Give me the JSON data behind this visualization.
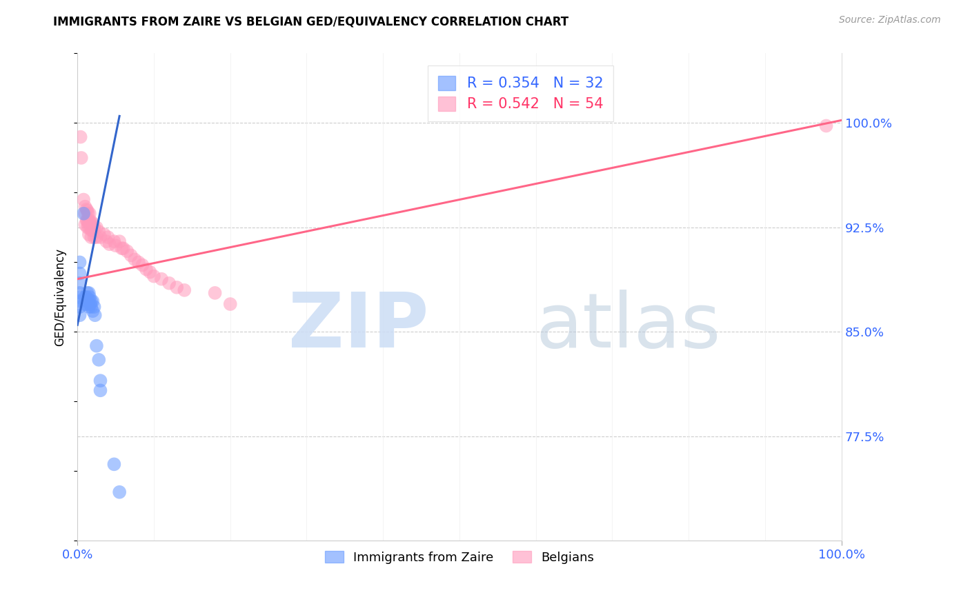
{
  "title": "IMMIGRANTS FROM ZAIRE VS BELGIAN GED/EQUIVALENCY CORRELATION CHART",
  "source": "Source: ZipAtlas.com",
  "ylabel": "GED/Equivalency",
  "ytick_labels": [
    "100.0%",
    "92.5%",
    "85.0%",
    "77.5%"
  ],
  "ytick_values": [
    1.0,
    0.925,
    0.85,
    0.775
  ],
  "xmin": 0.0,
  "xmax": 1.0,
  "ymin": 0.7,
  "ymax": 1.05,
  "blue_color": "#6699FF",
  "pink_color": "#FF99BB",
  "blue_line_color": "#3366CC",
  "pink_line_color": "#FF6688",
  "zaire_points_x": [
    0.003,
    0.003,
    0.003,
    0.003,
    0.003,
    0.003,
    0.003,
    0.003,
    0.008,
    0.01,
    0.01,
    0.012,
    0.012,
    0.013,
    0.013,
    0.015,
    0.015,
    0.015,
    0.016,
    0.017,
    0.018,
    0.018,
    0.02,
    0.02,
    0.022,
    0.023,
    0.025,
    0.028,
    0.03,
    0.03,
    0.048,
    0.055
  ],
  "zaire_points_y": [
    0.9,
    0.892,
    0.885,
    0.878,
    0.875,
    0.872,
    0.868,
    0.862,
    0.935,
    0.875,
    0.87,
    0.875,
    0.87,
    0.878,
    0.872,
    0.878,
    0.873,
    0.868,
    0.875,
    0.87,
    0.872,
    0.868,
    0.872,
    0.865,
    0.868,
    0.862,
    0.84,
    0.83,
    0.815,
    0.808,
    0.755,
    0.735
  ],
  "belgian_points_x": [
    0.004,
    0.005,
    0.008,
    0.01,
    0.01,
    0.01,
    0.012,
    0.012,
    0.013,
    0.013,
    0.013,
    0.014,
    0.014,
    0.015,
    0.015,
    0.015,
    0.016,
    0.016,
    0.017,
    0.018,
    0.018,
    0.018,
    0.02,
    0.02,
    0.022,
    0.022,
    0.025,
    0.025,
    0.028,
    0.03,
    0.035,
    0.038,
    0.04,
    0.042,
    0.048,
    0.05,
    0.055,
    0.058,
    0.06,
    0.065,
    0.07,
    0.075,
    0.08,
    0.085,
    0.09,
    0.095,
    0.1,
    0.11,
    0.12,
    0.13,
    0.14,
    0.18,
    0.2,
    0.98
  ],
  "belgian_points_y": [
    0.99,
    0.975,
    0.945,
    0.94,
    0.935,
    0.927,
    0.938,
    0.93,
    0.937,
    0.93,
    0.925,
    0.935,
    0.928,
    0.93,
    0.925,
    0.92,
    0.935,
    0.928,
    0.93,
    0.928,
    0.923,
    0.918,
    0.928,
    0.923,
    0.925,
    0.918,
    0.925,
    0.918,
    0.922,
    0.918,
    0.92,
    0.915,
    0.918,
    0.913,
    0.915,
    0.912,
    0.915,
    0.91,
    0.91,
    0.908,
    0.905,
    0.902,
    0.9,
    0.898,
    0.895,
    0.893,
    0.89,
    0.888,
    0.885,
    0.882,
    0.88,
    0.878,
    0.87,
    0.998
  ],
  "blue_line_x": [
    0.0,
    0.055
  ],
  "blue_line_y": [
    0.855,
    1.005
  ],
  "pink_line_x": [
    0.0,
    1.0
  ],
  "pink_line_y": [
    0.888,
    1.002
  ],
  "legend_entries": [
    {
      "label": "R = 0.354   N = 32",
      "color": "#3366FF"
    },
    {
      "label": "R = 0.542   N = 54",
      "color": "#FF3366"
    }
  ],
  "bottom_legend": [
    {
      "label": "Immigrants from Zaire",
      "color": "#6699FF"
    },
    {
      "label": "Belgians",
      "color": "#FF99BB"
    }
  ],
  "watermark_zip": "ZIP",
  "watermark_atlas": "atlas",
  "watermark_color_zip": "#DDEEFF",
  "watermark_color_atlas": "#BBDDEE",
  "grid_color": "#CCCCCC",
  "xtick_left": "0.0%",
  "xtick_right": "100.0%"
}
